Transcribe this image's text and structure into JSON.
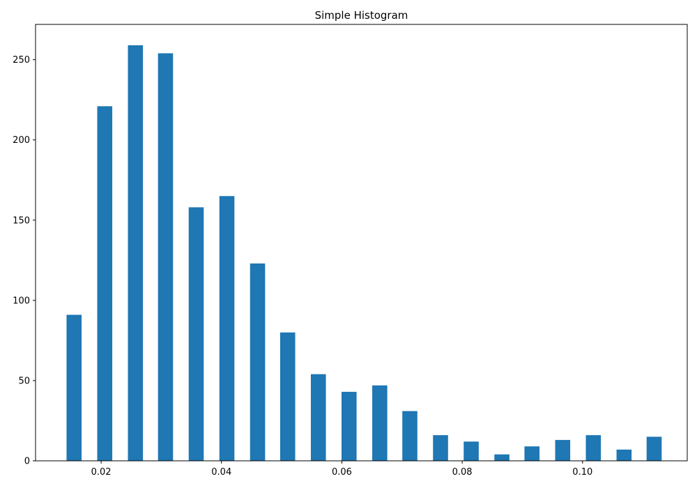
{
  "chart_data": {
    "type": "bar",
    "title": "Simple Histogram",
    "xlabel": "",
    "ylabel": "",
    "bar_color": "#1f77b4",
    "xlim": [
      0.0091,
      0.1174
    ],
    "ylim": [
      0,
      272
    ],
    "grid": false,
    "x_ticks": [
      {
        "value": 0.02,
        "label": "0.02"
      },
      {
        "value": 0.04,
        "label": "0.04"
      },
      {
        "value": 0.06,
        "label": "0.06"
      },
      {
        "value": 0.08,
        "label": "0.08"
      },
      {
        "value": 0.1,
        "label": "0.10"
      }
    ],
    "y_ticks": [
      {
        "value": 0,
        "label": "0"
      },
      {
        "value": 50,
        "label": "50"
      },
      {
        "value": 100,
        "label": "100"
      },
      {
        "value": 150,
        "label": "150"
      },
      {
        "value": 200,
        "label": "200"
      },
      {
        "value": 250,
        "label": "250"
      }
    ],
    "bin_width": 0.0025,
    "bins": [
      {
        "x": 0.0155,
        "count": 91
      },
      {
        "x": 0.0206,
        "count": 221
      },
      {
        "x": 0.0257,
        "count": 259
      },
      {
        "x": 0.0307,
        "count": 254
      },
      {
        "x": 0.0358,
        "count": 158
      },
      {
        "x": 0.0409,
        "count": 165
      },
      {
        "x": 0.046,
        "count": 123
      },
      {
        "x": 0.051,
        "count": 80
      },
      {
        "x": 0.0561,
        "count": 54
      },
      {
        "x": 0.0612,
        "count": 43
      },
      {
        "x": 0.0663,
        "count": 47
      },
      {
        "x": 0.0713,
        "count": 31
      },
      {
        "x": 0.0764,
        "count": 16
      },
      {
        "x": 0.0815,
        "count": 12
      },
      {
        "x": 0.0866,
        "count": 4
      },
      {
        "x": 0.0916,
        "count": 9
      },
      {
        "x": 0.0967,
        "count": 13
      },
      {
        "x": 0.1018,
        "count": 16
      },
      {
        "x": 0.1069,
        "count": 7
      },
      {
        "x": 0.1119,
        "count": 15
      }
    ]
  }
}
